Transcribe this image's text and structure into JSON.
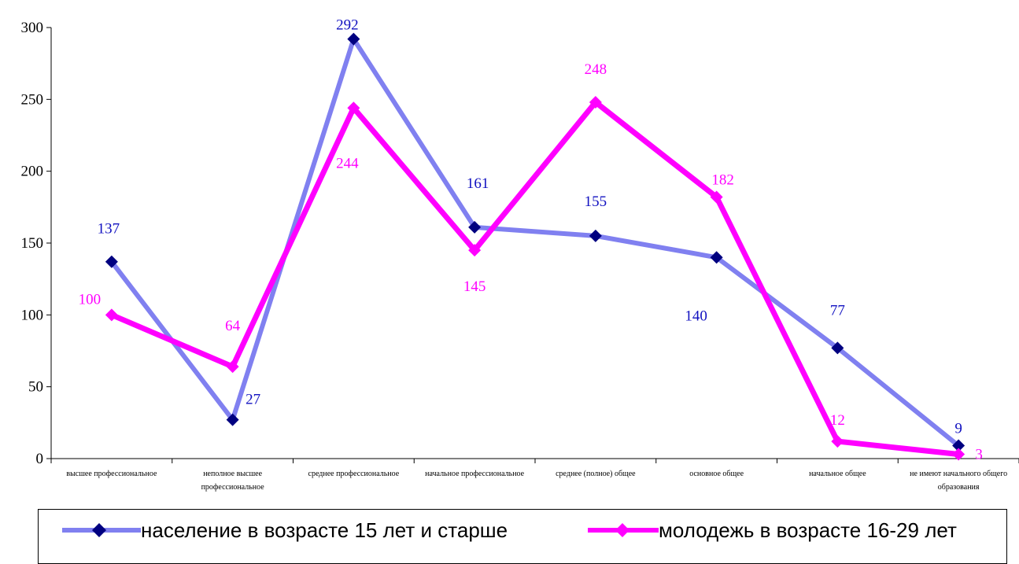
{
  "chart_data": {
    "type": "line",
    "categories": [
      [
        "высшее профессиональное"
      ],
      [
        "неполное высшее",
        "профессиональное"
      ],
      [
        "среднее профессиональное"
      ],
      [
        "начальное профессиональное"
      ],
      [
        "среднее (полное) общее"
      ],
      [
        "основное общее"
      ],
      [
        "начальное общее"
      ],
      [
        "не имеют начального общего",
        "образования"
      ]
    ],
    "series": [
      {
        "name": "население в возрасте 15 лет и старше",
        "values": [
          137,
          27,
          292,
          161,
          155,
          140,
          77,
          9
        ],
        "line_color": "#8080f0",
        "marker_color": "#000080",
        "label_color": "#1010c0"
      },
      {
        "name": "молодежь в возрасте 16-29 лет",
        "values": [
          100,
          64,
          244,
          145,
          248,
          182,
          12,
          3
        ],
        "line_color": "#ff00ff",
        "marker_color": "#ff00ff",
        "label_color": "#ff00ff"
      }
    ],
    "y_ticks": [
      0,
      50,
      100,
      150,
      200,
      250,
      300
    ],
    "ylim": [
      0,
      300
    ],
    "grid": false,
    "legend_position": "bottom"
  }
}
